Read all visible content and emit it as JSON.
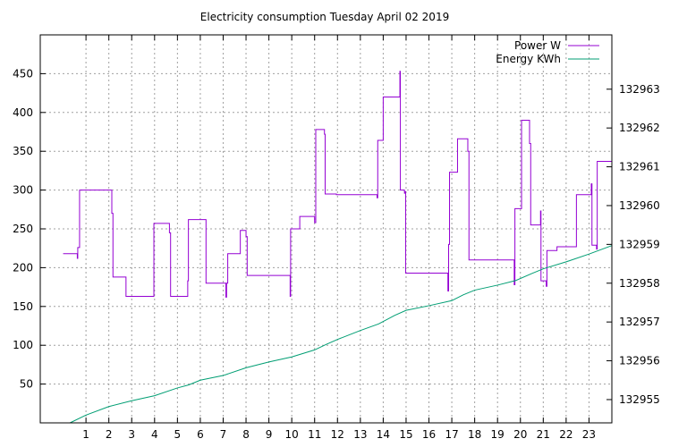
{
  "chart_data": {
    "type": "line",
    "title": "Electricity consumption Tuesday April 02 2019",
    "xlabel": "",
    "ylabel": "",
    "grid": true,
    "legend_position": "top-right",
    "x_axis": {
      "range": [
        -1,
        24
      ],
      "ticks": [
        1,
        2,
        3,
        4,
        5,
        6,
        7,
        8,
        9,
        10,
        11,
        12,
        13,
        14,
        15,
        16,
        17,
        18,
        19,
        20,
        21,
        22,
        23
      ]
    },
    "y_left": {
      "range": [
        0,
        500
      ],
      "ticks": [
        50,
        100,
        150,
        200,
        250,
        300,
        350,
        400,
        450
      ]
    },
    "y_right": {
      "range": [
        132954.4,
        132964.4
      ],
      "ticks": [
        132955,
        132956,
        132957,
        132958,
        132959,
        132960,
        132961,
        132962,
        132963
      ]
    },
    "series": [
      {
        "name": "Power W",
        "axis": "left",
        "color": "#9400d3",
        "step": true,
        "points": [
          [
            0.0,
            218
          ],
          [
            0.58,
            218
          ],
          [
            0.62,
            212
          ],
          [
            0.64,
            226
          ],
          [
            0.7,
            226
          ],
          [
            0.72,
            300
          ],
          [
            1.3,
            300
          ],
          [
            2.1,
            300
          ],
          [
            2.13,
            270
          ],
          [
            2.18,
            188
          ],
          [
            2.7,
            188
          ],
          [
            2.75,
            163
          ],
          [
            3.95,
            163
          ],
          [
            3.97,
            257
          ],
          [
            4.6,
            257
          ],
          [
            4.65,
            245
          ],
          [
            4.7,
            163
          ],
          [
            5.4,
            163
          ],
          [
            5.45,
            183
          ],
          [
            5.48,
            262
          ],
          [
            6.2,
            262
          ],
          [
            6.25,
            180
          ],
          [
            7.1,
            180
          ],
          [
            7.12,
            162
          ],
          [
            7.15,
            180
          ],
          [
            7.2,
            218
          ],
          [
            7.7,
            218
          ],
          [
            7.75,
            248
          ],
          [
            7.95,
            248
          ],
          [
            8.0,
            240
          ],
          [
            8.05,
            190
          ],
          [
            9.9,
            190
          ],
          [
            9.93,
            163
          ],
          [
            9.95,
            250
          ],
          [
            10.3,
            250
          ],
          [
            10.35,
            266
          ],
          [
            10.95,
            266
          ],
          [
            11.0,
            258
          ],
          [
            11.05,
            378
          ],
          [
            11.4,
            378
          ],
          [
            11.43,
            372
          ],
          [
            11.46,
            295
          ],
          [
            11.9,
            295
          ],
          [
            11.95,
            294
          ],
          [
            13.7,
            294
          ],
          [
            13.73,
            290
          ],
          [
            13.76,
            364
          ],
          [
            13.95,
            364
          ],
          [
            14.0,
            420
          ],
          [
            14.7,
            420
          ],
          [
            14.73,
            453
          ],
          [
            14.75,
            300
          ],
          [
            14.9,
            300
          ],
          [
            14.93,
            296
          ],
          [
            14.95,
            298
          ],
          [
            14.98,
            193
          ],
          [
            16.8,
            193
          ],
          [
            16.83,
            170
          ],
          [
            16.86,
            230
          ],
          [
            16.9,
            323
          ],
          [
            17.2,
            323
          ],
          [
            17.25,
            366
          ],
          [
            17.65,
            366
          ],
          [
            17.7,
            350
          ],
          [
            17.75,
            210
          ],
          [
            19.7,
            210
          ],
          [
            19.73,
            178
          ],
          [
            19.76,
            276
          ],
          [
            20.0,
            276
          ],
          [
            20.05,
            390
          ],
          [
            20.35,
            390
          ],
          [
            20.4,
            360
          ],
          [
            20.45,
            255
          ],
          [
            20.85,
            255
          ],
          [
            20.88,
            273
          ],
          [
            20.9,
            183
          ],
          [
            21.1,
            183
          ],
          [
            21.13,
            176
          ],
          [
            21.16,
            222
          ],
          [
            21.55,
            222
          ],
          [
            21.6,
            227
          ],
          [
            22.4,
            227
          ],
          [
            22.45,
            294
          ],
          [
            23.05,
            294
          ],
          [
            23.1,
            308
          ],
          [
            23.13,
            229
          ],
          [
            23.3,
            229
          ],
          [
            23.33,
            224
          ],
          [
            23.36,
            337
          ],
          [
            24.0,
            337
          ]
        ]
      },
      {
        "name": "Energy KWh",
        "axis": "right",
        "color": "#009e73",
        "step": false,
        "points": [
          [
            0.3,
            132954.4
          ],
          [
            1.0,
            132954.6
          ],
          [
            2.0,
            132954.82
          ],
          [
            3.0,
            132954.97
          ],
          [
            4.0,
            132955.1
          ],
          [
            5.0,
            132955.3
          ],
          [
            5.5,
            132955.38
          ],
          [
            6.0,
            132955.5
          ],
          [
            7.0,
            132955.62
          ],
          [
            8.0,
            132955.82
          ],
          [
            9.0,
            132955.97
          ],
          [
            10.0,
            132956.1
          ],
          [
            11.0,
            132956.28
          ],
          [
            11.5,
            132956.42
          ],
          [
            12.0,
            132956.55
          ],
          [
            13.0,
            132956.78
          ],
          [
            13.8,
            132956.95
          ],
          [
            14.5,
            132957.17
          ],
          [
            15.0,
            132957.3
          ],
          [
            16.0,
            132957.42
          ],
          [
            17.0,
            132957.55
          ],
          [
            17.5,
            132957.7
          ],
          [
            18.0,
            132957.82
          ],
          [
            19.0,
            132957.95
          ],
          [
            19.8,
            132958.07
          ],
          [
            20.5,
            132958.25
          ],
          [
            21.0,
            132958.37
          ],
          [
            22.0,
            132958.55
          ],
          [
            23.0,
            132958.75
          ],
          [
            24.0,
            132958.97
          ]
        ]
      }
    ]
  }
}
